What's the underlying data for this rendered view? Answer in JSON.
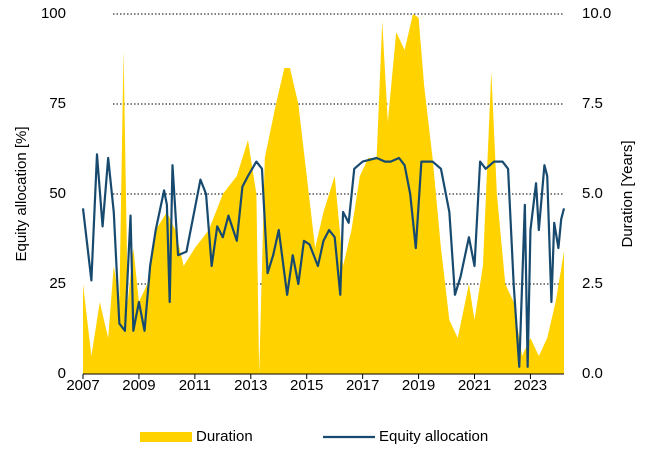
{
  "chart_data": {
    "type": "line",
    "y_label": "Equity allocation [%]",
    "y2_label": "Duration [Years]",
    "xlim": [
      2007,
      2024.2
    ],
    "xticks": [
      2007,
      2009,
      2011,
      2013,
      2015,
      2017,
      2019,
      2021,
      2023
    ],
    "ylim": [
      0,
      100
    ],
    "yticks": [
      0,
      25,
      50,
      75,
      100
    ],
    "y2lim": [
      0,
      10
    ],
    "y2ticks": [
      {
        "value": 0,
        "label": "0.0"
      },
      2.5,
      {
        "value": 5,
        "label": "5.0"
      },
      7.5,
      {
        "value": 10,
        "label": "10.0"
      }
    ],
    "grid": true,
    "legend": "bottom",
    "series": [
      {
        "name": "Duration",
        "kind": "area",
        "axis": "y2",
        "color": "#FFD200",
        "x": [
          2007.0,
          2007.3,
          2007.6,
          2007.9,
          2008.1,
          2008.3,
          2008.45,
          2008.6,
          2008.8,
          2009.0,
          2009.3,
          2009.6,
          2010.0,
          2010.3,
          2010.6,
          2011.0,
          2011.5,
          2012.0,
          2012.5,
          2012.9,
          2013.2,
          2013.3,
          2013.5,
          2013.9,
          2014.2,
          2014.4,
          2014.7,
          2015.0,
          2015.3,
          2015.6,
          2016.0,
          2016.3,
          2016.6,
          2016.9,
          2017.2,
          2017.5,
          2017.7,
          2017.9,
          2018.2,
          2018.5,
          2018.8,
          2019.0,
          2019.2,
          2019.5,
          2019.8,
          2020.1,
          2020.4,
          2020.8,
          2021.0,
          2021.3,
          2021.6,
          2021.8,
          2022.1,
          2022.4,
          2022.7,
          2023.0,
          2023.3,
          2023.6,
          2023.9,
          2024.2
        ],
        "values": [
          2.5,
          0.5,
          2,
          1,
          3,
          2,
          9,
          2,
          3.5,
          2,
          2.5,
          4,
          4.5,
          4,
          3,
          3.5,
          4,
          5,
          5.5,
          6.5,
          5,
          0,
          6,
          7.5,
          8.5,
          8.5,
          7.5,
          5.5,
          3.5,
          4.5,
          5.5,
          3,
          4,
          5.5,
          6,
          6,
          9.8,
          7,
          9.5,
          9,
          10,
          9.9,
          8,
          6,
          3.5,
          1.5,
          1,
          2.5,
          1.5,
          3,
          8.4,
          5,
          2.5,
          2,
          0.5,
          1,
          0.5,
          1,
          2,
          3.4
        ]
      },
      {
        "name": "Equity allocation",
        "kind": "line",
        "axis": "y",
        "color": "#174A6E",
        "x": [
          2007.0,
          2007.3,
          2007.5,
          2007.7,
          2007.9,
          2008.1,
          2008.3,
          2008.5,
          2008.7,
          2008.8,
          2009.0,
          2009.2,
          2009.4,
          2009.6,
          2009.9,
          2010.0,
          2010.1,
          2010.2,
          2010.4,
          2010.7,
          2011.0,
          2011.2,
          2011.4,
          2011.6,
          2011.8,
          2012.0,
          2012.2,
          2012.5,
          2012.7,
          2012.9,
          2013.2,
          2013.4,
          2013.6,
          2013.8,
          2014.0,
          2014.3,
          2014.5,
          2014.7,
          2014.9,
          2015.1,
          2015.4,
          2015.6,
          2015.8,
          2016.0,
          2016.2,
          2016.3,
          2016.5,
          2016.7,
          2017.0,
          2017.5,
          2017.8,
          2018.0,
          2018.3,
          2018.5,
          2018.7,
          2018.9,
          2019.1,
          2019.5,
          2019.8,
          2020.1,
          2020.3,
          2020.5,
          2020.8,
          2021.0,
          2021.2,
          2021.4,
          2021.7,
          2022.0,
          2022.2,
          2022.4,
          2022.6,
          2022.8,
          2022.9,
          2023.0,
          2023.2,
          2023.3,
          2023.5,
          2023.6,
          2023.75,
          2023.85,
          2024.0,
          2024.1,
          2024.2
        ],
        "values": [
          46,
          26,
          61,
          41,
          60,
          45,
          14,
          12,
          44,
          12,
          20,
          12,
          30,
          40,
          51,
          47,
          20,
          58,
          33,
          34,
          46,
          54,
          50,
          30,
          41,
          38,
          44,
          37,
          52,
          55,
          59,
          57,
          28,
          33,
          40,
          22,
          33,
          25,
          37,
          36,
          30,
          37,
          40,
          38,
          22,
          45,
          42,
          57,
          59,
          60,
          59,
          59,
          60,
          58,
          50,
          35,
          59,
          59,
          57,
          45,
          22,
          27,
          38,
          30,
          59,
          57,
          59,
          59,
          57,
          25,
          2,
          47,
          2,
          40,
          53,
          40,
          58,
          55,
          20,
          42,
          35,
          43,
          46
        ]
      }
    ]
  }
}
